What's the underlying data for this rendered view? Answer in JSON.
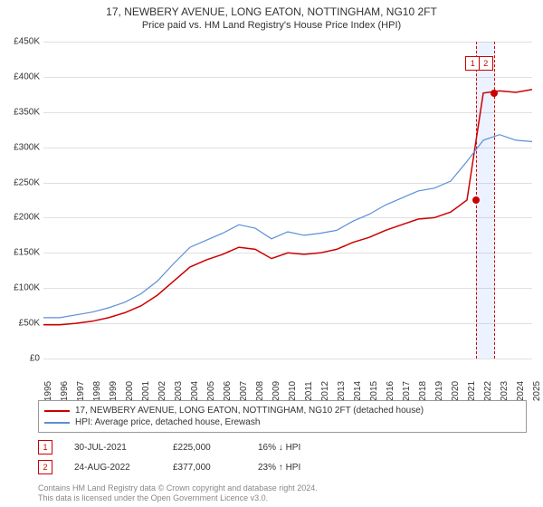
{
  "title": "17, NEWBERY AVENUE, LONG EATON, NOTTINGHAM, NG10 2FT",
  "subtitle": "Price paid vs. HM Land Registry's House Price Index (HPI)",
  "chart": {
    "type": "line",
    "background_color": "#ffffff",
    "grid_color": "#e0e0e0",
    "axis_color": "#333333",
    "label_fontsize": 10,
    "ylim": [
      0,
      450000
    ],
    "ytick_step": 50000,
    "y_tick_labels": [
      "£0",
      "£50K",
      "£100K",
      "£150K",
      "£200K",
      "£250K",
      "£300K",
      "£350K",
      "£400K",
      "£450K"
    ],
    "x_years": [
      1995,
      1996,
      1997,
      1998,
      1999,
      2000,
      2001,
      2002,
      2003,
      2004,
      2005,
      2006,
      2007,
      2008,
      2009,
      2010,
      2011,
      2012,
      2013,
      2014,
      2015,
      2016,
      2017,
      2018,
      2019,
      2020,
      2021,
      2022,
      2023,
      2024,
      2025
    ],
    "series": [
      {
        "name": "property",
        "color": "#cc0000",
        "line_width": 1.5,
        "label": "17, NEWBERY AVENUE, LONG EATON, NOTTINGHAM, NG10 2FT (detached house)",
        "data": [
          [
            1995,
            48000
          ],
          [
            1996,
            48000
          ],
          [
            1997,
            50000
          ],
          [
            1998,
            53000
          ],
          [
            1999,
            58000
          ],
          [
            2000,
            65000
          ],
          [
            2001,
            75000
          ],
          [
            2002,
            90000
          ],
          [
            2003,
            110000
          ],
          [
            2004,
            130000
          ],
          [
            2005,
            140000
          ],
          [
            2006,
            148000
          ],
          [
            2007,
            158000
          ],
          [
            2008,
            155000
          ],
          [
            2009,
            142000
          ],
          [
            2010,
            150000
          ],
          [
            2011,
            148000
          ],
          [
            2012,
            150000
          ],
          [
            2013,
            155000
          ],
          [
            2014,
            165000
          ],
          [
            2015,
            172000
          ],
          [
            2016,
            182000
          ],
          [
            2017,
            190000
          ],
          [
            2018,
            198000
          ],
          [
            2019,
            200000
          ],
          [
            2020,
            208000
          ],
          [
            2021,
            225000
          ],
          [
            2022,
            377000
          ],
          [
            2023,
            380000
          ],
          [
            2024,
            378000
          ],
          [
            2025,
            382000
          ]
        ]
      },
      {
        "name": "hpi",
        "color": "#5b8fd6",
        "line_width": 1.2,
        "label": "HPI: Average price, detached house, Erewash",
        "data": [
          [
            1995,
            58000
          ],
          [
            1996,
            58000
          ],
          [
            1997,
            62000
          ],
          [
            1998,
            66000
          ],
          [
            1999,
            72000
          ],
          [
            2000,
            80000
          ],
          [
            2001,
            92000
          ],
          [
            2002,
            110000
          ],
          [
            2003,
            135000
          ],
          [
            2004,
            158000
          ],
          [
            2005,
            168000
          ],
          [
            2006,
            178000
          ],
          [
            2007,
            190000
          ],
          [
            2008,
            185000
          ],
          [
            2009,
            170000
          ],
          [
            2010,
            180000
          ],
          [
            2011,
            175000
          ],
          [
            2012,
            178000
          ],
          [
            2013,
            182000
          ],
          [
            2014,
            195000
          ],
          [
            2015,
            205000
          ],
          [
            2016,
            218000
          ],
          [
            2017,
            228000
          ],
          [
            2018,
            238000
          ],
          [
            2019,
            242000
          ],
          [
            2020,
            252000
          ],
          [
            2021,
            280000
          ],
          [
            2022,
            310000
          ],
          [
            2023,
            318000
          ],
          [
            2024,
            310000
          ],
          [
            2025,
            308000
          ]
        ]
      }
    ],
    "sale_markers": [
      {
        "n": "1",
        "year": 2021.58,
        "value": 225000,
        "marker_year": 2021.3,
        "marker_y": 420000
      },
      {
        "n": "2",
        "year": 2022.65,
        "value": 377000,
        "marker_year": 2022.1,
        "marker_y": 420000
      }
    ],
    "highlight_band": {
      "from": 2021.58,
      "to": 2022.65,
      "color": "rgba(100,150,255,0.12)"
    }
  },
  "legend": {
    "border_color": "#999999"
  },
  "sales_table": {
    "rows": [
      {
        "n": "1",
        "date": "30-JUL-2021",
        "price": "£225,000",
        "change": "16% ↓ HPI"
      },
      {
        "n": "2",
        "date": "24-AUG-2022",
        "price": "£377,000",
        "change": "23% ↑ HPI"
      }
    ]
  },
  "attribution": {
    "line1": "Contains HM Land Registry data © Crown copyright and database right 2024.",
    "line2": "This data is licensed under the Open Government Licence v3.0."
  }
}
